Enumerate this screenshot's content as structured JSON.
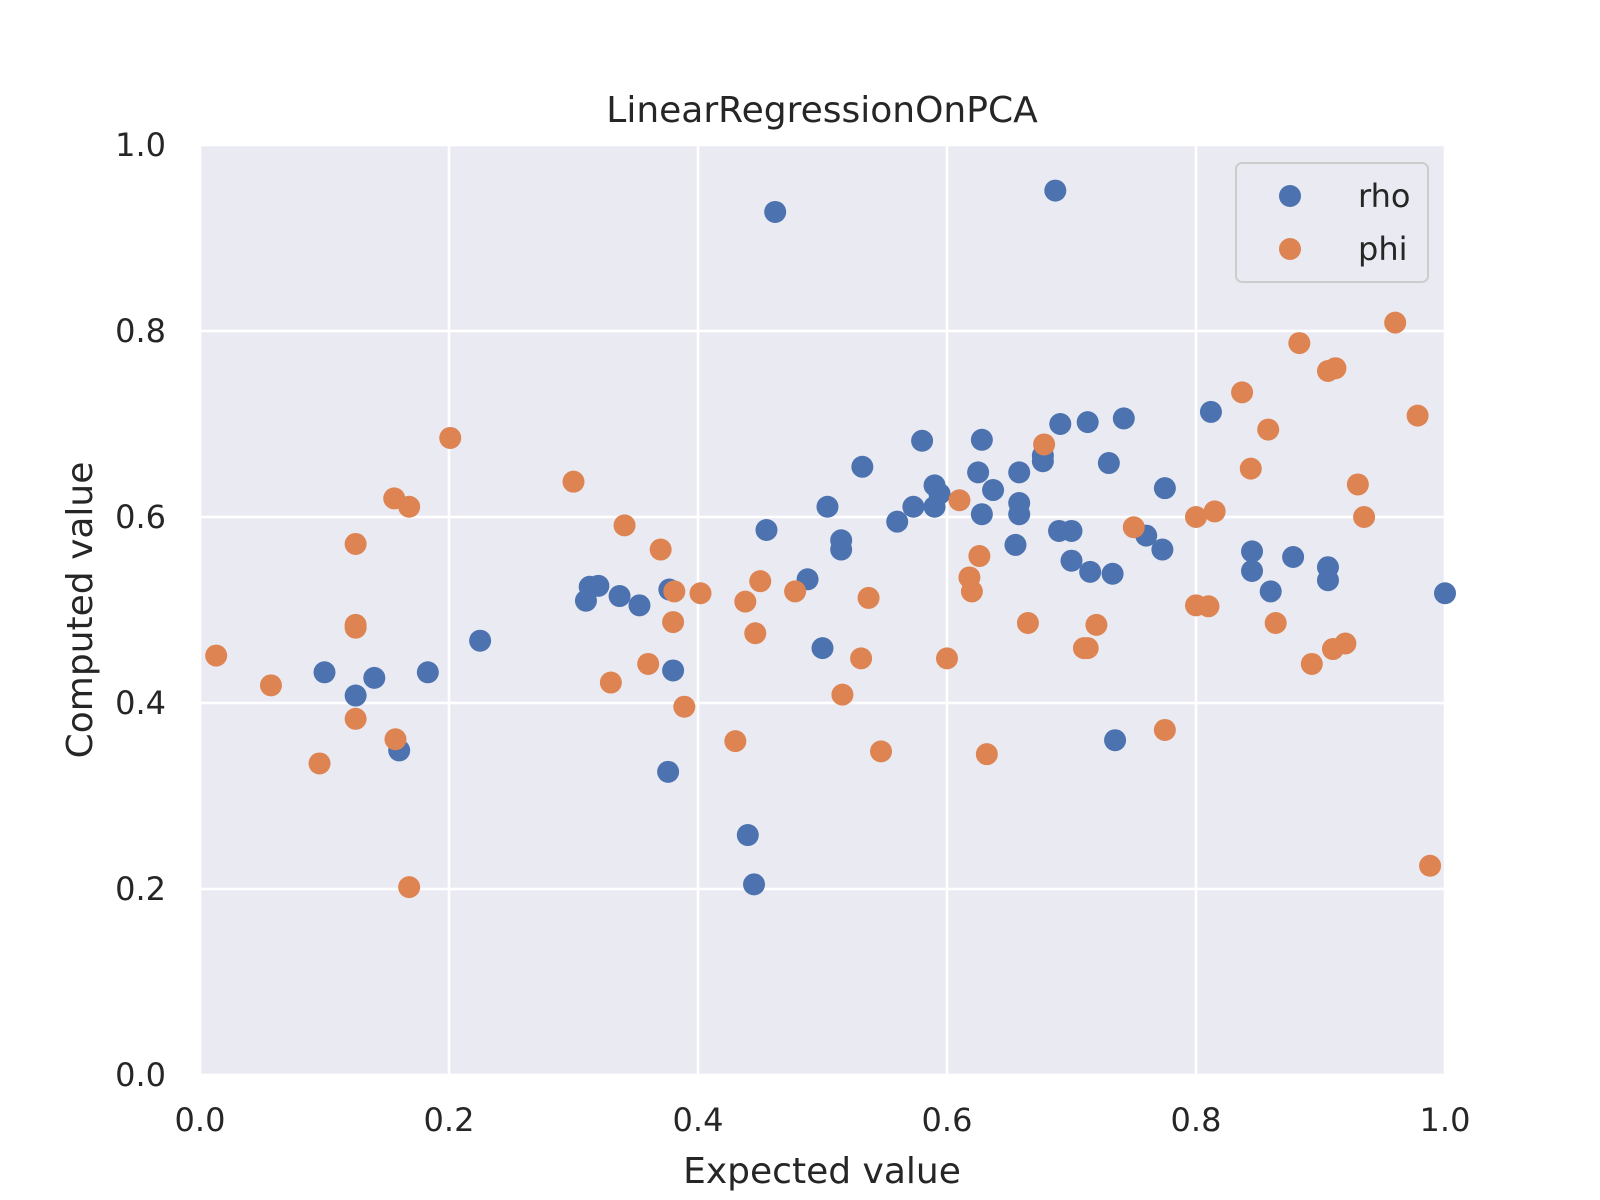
{
  "chart_data": {
    "type": "scatter",
    "title": "LinearRegressionOnPCA",
    "xlabel": "Expected value",
    "ylabel": "Computed value",
    "xlim": [
      0,
      1
    ],
    "ylim": [
      0,
      1
    ],
    "xticks": [
      0.0,
      0.2,
      0.4,
      0.6,
      0.8,
      1.0
    ],
    "yticks": [
      0.0,
      0.2,
      0.4,
      0.6,
      0.8,
      1.0
    ],
    "xtick_labels": [
      "0.0",
      "0.2",
      "0.4",
      "0.6",
      "0.8",
      "1.0"
    ],
    "ytick_labels": [
      "0.0",
      "0.2",
      "0.4",
      "0.6",
      "0.8",
      "1.0"
    ],
    "grid": true,
    "legend_position": "top-right",
    "background_color": "#eaeaf2",
    "series": [
      {
        "name": "rho",
        "color": "#4c72b0",
        "points": [
          [
            0.1,
            0.433
          ],
          [
            0.125,
            0.408
          ],
          [
            0.14,
            0.427
          ],
          [
            0.16,
            0.349
          ],
          [
            0.183,
            0.433
          ],
          [
            0.225,
            0.467
          ],
          [
            0.31,
            0.51
          ],
          [
            0.313,
            0.525
          ],
          [
            0.32,
            0.526
          ],
          [
            0.337,
            0.515
          ],
          [
            0.353,
            0.505
          ],
          [
            0.377,
            0.522
          ],
          [
            0.38,
            0.435
          ],
          [
            0.376,
            0.326
          ],
          [
            0.44,
            0.258
          ],
          [
            0.445,
            0.205
          ],
          [
            0.455,
            0.586
          ],
          [
            0.462,
            0.928
          ],
          [
            0.488,
            0.533
          ],
          [
            0.5,
            0.459
          ],
          [
            0.504,
            0.611
          ],
          [
            0.515,
            0.575
          ],
          [
            0.515,
            0.565
          ],
          [
            0.532,
            0.654
          ],
          [
            0.56,
            0.595
          ],
          [
            0.573,
            0.611
          ],
          [
            0.58,
            0.682
          ],
          [
            0.59,
            0.634
          ],
          [
            0.59,
            0.611
          ],
          [
            0.594,
            0.625
          ],
          [
            0.625,
            0.648
          ],
          [
            0.628,
            0.683
          ],
          [
            0.628,
            0.603
          ],
          [
            0.637,
            0.629
          ],
          [
            0.655,
            0.57
          ],
          [
            0.658,
            0.648
          ],
          [
            0.658,
            0.615
          ],
          [
            0.658,
            0.603
          ],
          [
            0.677,
            0.66
          ],
          [
            0.677,
            0.666
          ],
          [
            0.687,
            0.951
          ],
          [
            0.69,
            0.585
          ],
          [
            0.691,
            0.7
          ],
          [
            0.7,
            0.585
          ],
          [
            0.7,
            0.553
          ],
          [
            0.713,
            0.702
          ],
          [
            0.715,
            0.541
          ],
          [
            0.73,
            0.658
          ],
          [
            0.733,
            0.539
          ],
          [
            0.735,
            0.36
          ],
          [
            0.742,
            0.706
          ],
          [
            0.76,
            0.58
          ],
          [
            0.773,
            0.565
          ],
          [
            0.775,
            0.631
          ],
          [
            0.812,
            0.713
          ],
          [
            0.845,
            0.563
          ],
          [
            0.845,
            0.542
          ],
          [
            0.86,
            0.52
          ],
          [
            0.878,
            0.557
          ],
          [
            0.906,
            0.546
          ],
          [
            0.906,
            0.532
          ],
          [
            1.0,
            0.518
          ]
        ]
      },
      {
        "name": "phi",
        "color": "#dd8452",
        "points": [
          [
            0.013,
            0.451
          ],
          [
            0.057,
            0.419
          ],
          [
            0.096,
            0.335
          ],
          [
            0.125,
            0.571
          ],
          [
            0.125,
            0.484
          ],
          [
            0.125,
            0.481
          ],
          [
            0.125,
            0.383
          ],
          [
            0.156,
            0.62
          ],
          [
            0.157,
            0.361
          ],
          [
            0.168,
            0.611
          ],
          [
            0.168,
            0.202
          ],
          [
            0.201,
            0.685
          ],
          [
            0.3,
            0.638
          ],
          [
            0.33,
            0.422
          ],
          [
            0.341,
            0.591
          ],
          [
            0.36,
            0.442
          ],
          [
            0.37,
            0.565
          ],
          [
            0.381,
            0.52
          ],
          [
            0.38,
            0.487
          ],
          [
            0.389,
            0.396
          ],
          [
            0.402,
            0.518
          ],
          [
            0.43,
            0.359
          ],
          [
            0.438,
            0.509
          ],
          [
            0.446,
            0.475
          ],
          [
            0.45,
            0.531
          ],
          [
            0.478,
            0.52
          ],
          [
            0.516,
            0.409
          ],
          [
            0.531,
            0.448
          ],
          [
            0.537,
            0.513
          ],
          [
            0.547,
            0.348
          ],
          [
            0.6,
            0.448
          ],
          [
            0.61,
            0.618
          ],
          [
            0.618,
            0.535
          ],
          [
            0.62,
            0.52
          ],
          [
            0.626,
            0.558
          ],
          [
            0.632,
            0.345
          ],
          [
            0.665,
            0.486
          ],
          [
            0.678,
            0.678
          ],
          [
            0.71,
            0.459
          ],
          [
            0.713,
            0.459
          ],
          [
            0.72,
            0.484
          ],
          [
            0.75,
            0.589
          ],
          [
            0.775,
            0.371
          ],
          [
            0.8,
            0.6
          ],
          [
            0.8,
            0.505
          ],
          [
            0.81,
            0.504
          ],
          [
            0.815,
            0.606
          ],
          [
            0.837,
            0.734
          ],
          [
            0.844,
            0.652
          ],
          [
            0.858,
            0.694
          ],
          [
            0.864,
            0.486
          ],
          [
            0.883,
            0.787
          ],
          [
            0.893,
            0.442
          ],
          [
            0.906,
            0.757
          ],
          [
            0.912,
            0.76
          ],
          [
            0.91,
            0.458
          ],
          [
            0.92,
            0.464
          ],
          [
            0.93,
            0.635
          ],
          [
            0.935,
            0.6
          ],
          [
            0.96,
            0.809
          ],
          [
            0.978,
            0.709
          ],
          [
            0.988,
            0.225
          ]
        ]
      }
    ]
  }
}
